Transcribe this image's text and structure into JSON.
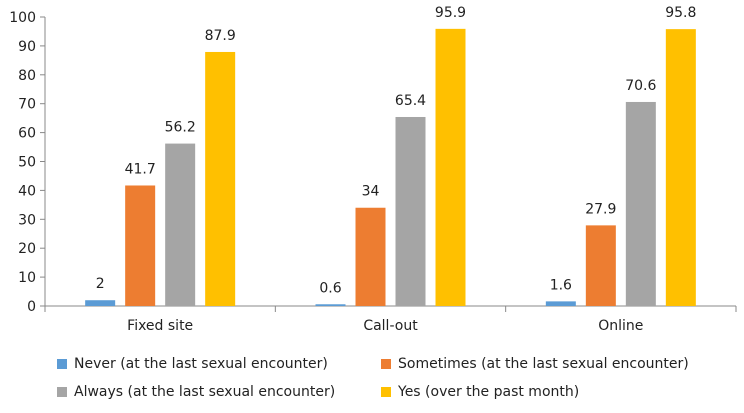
{
  "chart_data": {
    "type": "bar",
    "categories": [
      "Fixed site",
      "Call-out",
      "Online"
    ],
    "series": [
      {
        "name": "Never (at the last sexual encounter)",
        "color": "#5B9BD5",
        "values": [
          2,
          0.6,
          1.6
        ],
        "labels": [
          "2",
          "0.6",
          "1.6"
        ]
      },
      {
        "name": "Sometimes (at the last sexual encounter)",
        "color": "#ED7D31",
        "values": [
          41.7,
          34,
          27.9
        ],
        "labels": [
          "41.7",
          "34",
          "27.9"
        ]
      },
      {
        "name": "Always (at the last sexual encounter)",
        "color": "#A5A5A5",
        "values": [
          56.2,
          65.4,
          70.6
        ],
        "labels": [
          "56.2",
          "65.4",
          "70.6"
        ]
      },
      {
        "name": "Yes (over the past month)",
        "color": "#FFC000",
        "values": [
          87.9,
          95.9,
          95.8
        ],
        "labels": [
          "87.9",
          "95.9",
          "95.8"
        ]
      }
    ],
    "yticks": [
      "0",
      "10",
      "20",
      "30",
      "40",
      "50",
      "60",
      "70",
      "80",
      "90",
      "100"
    ],
    "ylim": [
      0,
      100
    ],
    "grid": false,
    "legend_position": "bottom"
  }
}
